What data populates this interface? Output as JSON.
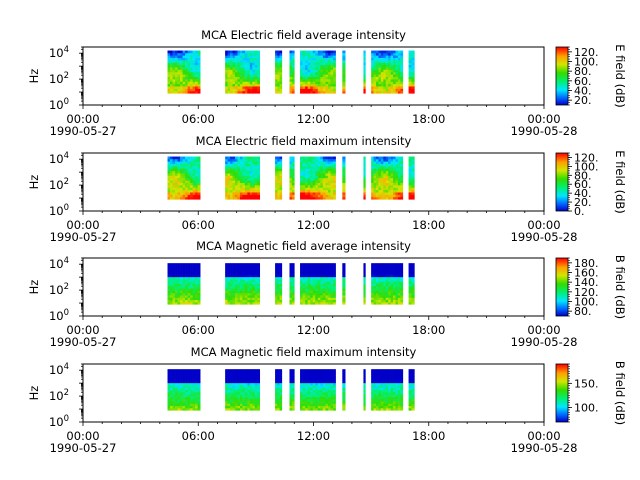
{
  "chart_data": [
    {
      "type": "heatmap",
      "title": "MCA  Electric field average intensity",
      "ylabel": "Hz",
      "y_scale": "log",
      "ylim": [
        1,
        30000
      ],
      "y_ticks": [
        {
          "v": 1,
          "base": "10",
          "exp": "0"
        },
        {
          "v": 100,
          "base": "10",
          "exp": "2"
        },
        {
          "v": 10000,
          "base": "10",
          "exp": "4"
        }
      ],
      "xlim": [
        0,
        24
      ],
      "x_ticks": [
        {
          "h": 0,
          "time": "00:00",
          "date": "1990-05-27"
        },
        {
          "h": 6,
          "time": "06:00",
          "date": ""
        },
        {
          "h": 12,
          "time": "12:00",
          "date": ""
        },
        {
          "h": 18,
          "time": "18:00",
          "date": ""
        },
        {
          "h": 24,
          "time": "00:00",
          "date": "1990-05-28"
        }
      ],
      "colorbar": {
        "label": "E field (dB)",
        "range": [
          10,
          130
        ],
        "ticks": [
          "20.",
          "40.",
          "60.",
          "80.",
          "100.",
          "120."
        ],
        "tick_values": [
          20,
          40,
          60,
          80,
          100,
          120
        ]
      },
      "field": "E",
      "mode": "avg",
      "data_segments_hours": [
        [
          4.4,
          6.1
        ],
        [
          7.4,
          9.2
        ],
        [
          10.0,
          10.35
        ],
        [
          10.75,
          11.0
        ],
        [
          11.3,
          13.15
        ],
        [
          13.5,
          13.65
        ],
        [
          14.6,
          14.7
        ],
        [
          15.0,
          16.65
        ],
        [
          16.95,
          17.25
        ]
      ]
    },
    {
      "type": "heatmap",
      "title": "MCA  Electric field maximum intensity",
      "ylabel": "Hz",
      "y_scale": "log",
      "ylim": [
        1,
        30000
      ],
      "y_ticks": [
        {
          "v": 1,
          "base": "10",
          "exp": "0"
        },
        {
          "v": 100,
          "base": "10",
          "exp": "2"
        },
        {
          "v": 10000,
          "base": "10",
          "exp": "4"
        }
      ],
      "xlim": [
        0,
        24
      ],
      "x_ticks": [
        {
          "h": 0,
          "time": "00:00",
          "date": "1990-05-27"
        },
        {
          "h": 6,
          "time": "06:00",
          "date": ""
        },
        {
          "h": 12,
          "time": "12:00",
          "date": ""
        },
        {
          "h": 18,
          "time": "18:00",
          "date": ""
        },
        {
          "h": 24,
          "time": "00:00",
          "date": "1990-05-28"
        }
      ],
      "colorbar": {
        "label": "E field (dB)",
        "range": [
          0,
          130
        ],
        "ticks": [
          "0.",
          "20.",
          "40.",
          "60.",
          "80.",
          "100.",
          "120."
        ],
        "tick_values": [
          0,
          20,
          40,
          60,
          80,
          100,
          120
        ]
      },
      "field": "E",
      "mode": "max",
      "data_segments_hours": [
        [
          4.4,
          6.1
        ],
        [
          7.4,
          9.2
        ],
        [
          10.0,
          10.35
        ],
        [
          10.75,
          11.0
        ],
        [
          11.3,
          13.15
        ],
        [
          13.5,
          13.65
        ],
        [
          14.6,
          14.7
        ],
        [
          15.0,
          16.65
        ],
        [
          16.95,
          17.25
        ]
      ]
    },
    {
      "type": "heatmap",
      "title": "MCA  Magnetic field average intensity",
      "ylabel": "Hz",
      "y_scale": "log",
      "ylim": [
        1,
        30000
      ],
      "y_ticks": [
        {
          "v": 1,
          "base": "10",
          "exp": "0"
        },
        {
          "v": 100,
          "base": "10",
          "exp": "2"
        },
        {
          "v": 10000,
          "base": "10",
          "exp": "4"
        }
      ],
      "xlim": [
        0,
        24
      ],
      "x_ticks": [
        {
          "h": 0,
          "time": "00:00",
          "date": "1990-05-27"
        },
        {
          "h": 6,
          "time": "06:00",
          "date": ""
        },
        {
          "h": 12,
          "time": "12:00",
          "date": ""
        },
        {
          "h": 18,
          "time": "18:00",
          "date": ""
        },
        {
          "h": 24,
          "time": "00:00",
          "date": "1990-05-28"
        }
      ],
      "colorbar": {
        "label": "B field (dB)",
        "range": [
          70,
          190
        ],
        "ticks": [
          "80.",
          "100.",
          "120.",
          "140.",
          "160.",
          "180."
        ],
        "tick_values": [
          80,
          100,
          120,
          140,
          160,
          180
        ]
      },
      "field": "B",
      "mode": "avg",
      "data_segments_hours": [
        [
          4.4,
          6.1
        ],
        [
          7.4,
          9.2
        ],
        [
          10.0,
          10.35
        ],
        [
          10.75,
          11.0
        ],
        [
          11.3,
          13.15
        ],
        [
          13.5,
          13.65
        ],
        [
          14.6,
          14.7
        ],
        [
          15.0,
          16.65
        ],
        [
          16.95,
          17.25
        ]
      ]
    },
    {
      "type": "heatmap",
      "title": "MCA  Magnetic field maximum intensity",
      "ylabel": "Hz",
      "y_scale": "log",
      "ylim": [
        1,
        30000
      ],
      "y_ticks": [
        {
          "v": 1,
          "base": "10",
          "exp": "0"
        },
        {
          "v": 100,
          "base": "10",
          "exp": "2"
        },
        {
          "v": 10000,
          "base": "10",
          "exp": "4"
        }
      ],
      "xlim": [
        0,
        24
      ],
      "x_ticks": [
        {
          "h": 0,
          "time": "00:00",
          "date": "1990-05-27"
        },
        {
          "h": 6,
          "time": "06:00",
          "date": ""
        },
        {
          "h": 12,
          "time": "12:00",
          "date": ""
        },
        {
          "h": 18,
          "time": "18:00",
          "date": ""
        },
        {
          "h": 24,
          "time": "00:00",
          "date": "1990-05-28"
        }
      ],
      "colorbar": {
        "label": "B field (dB)",
        "range": [
          70,
          190
        ],
        "ticks": [
          "100.",
          "150."
        ],
        "tick_values": [
          100,
          150
        ]
      },
      "field": "B",
      "mode": "max",
      "data_segments_hours": [
        [
          4.4,
          6.1
        ],
        [
          7.4,
          9.2
        ],
        [
          10.0,
          10.35
        ],
        [
          10.75,
          11.0
        ],
        [
          11.3,
          13.15
        ],
        [
          13.5,
          13.65
        ],
        [
          14.6,
          14.7
        ],
        [
          15.0,
          16.65
        ],
        [
          16.95,
          17.25
        ]
      ]
    }
  ]
}
